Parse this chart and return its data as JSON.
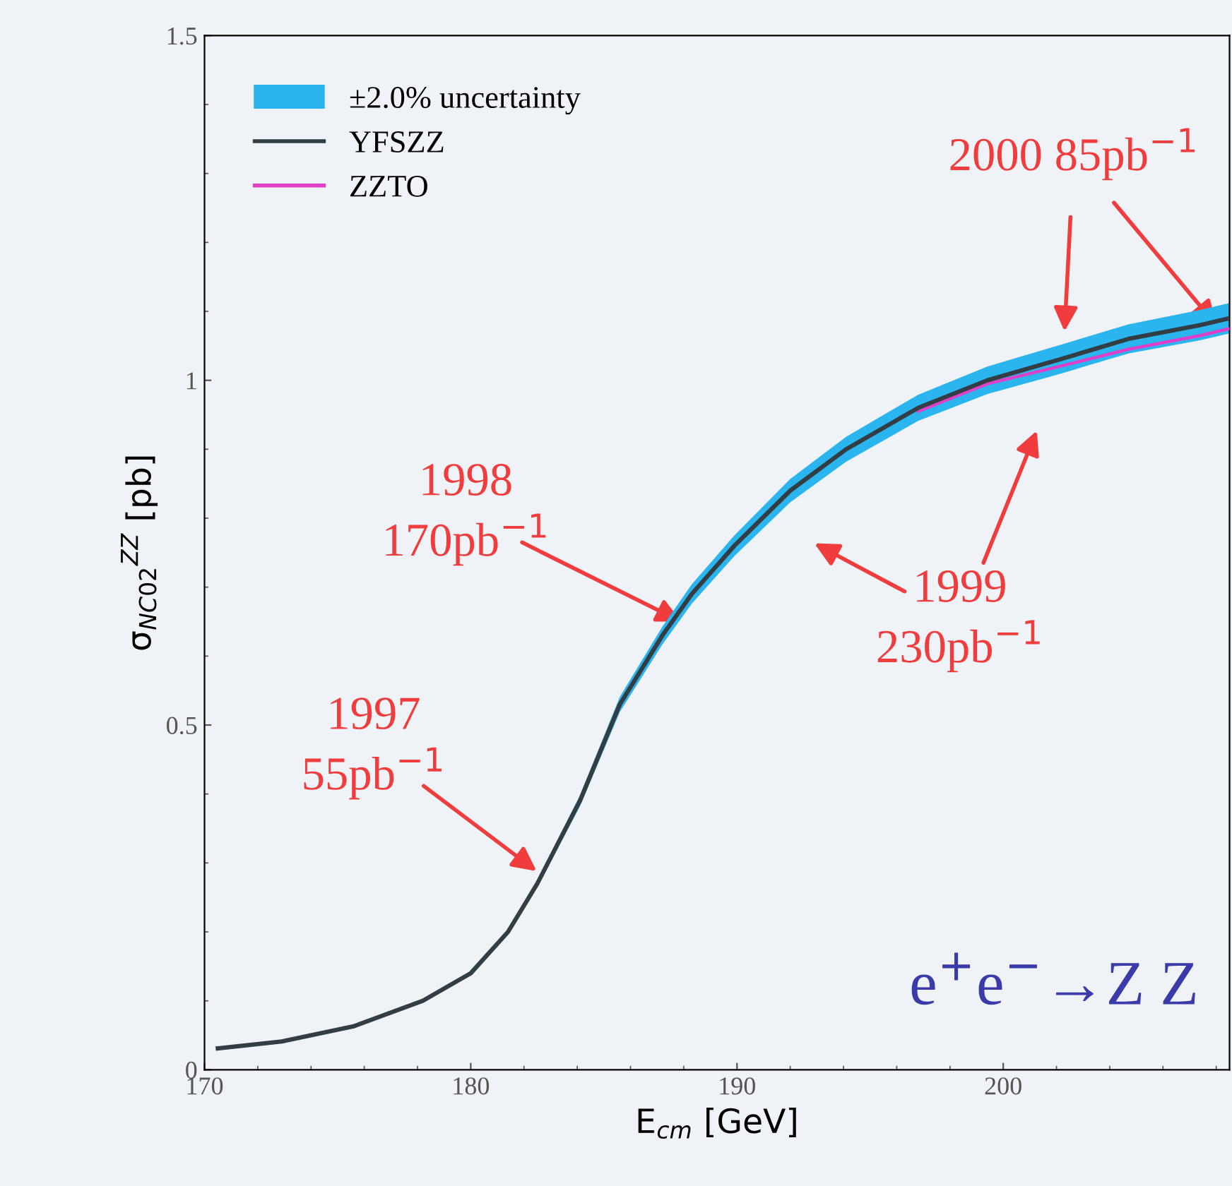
{
  "chart_data": {
    "type": "line",
    "xlabel": "E$_{cm}$ [GeV]",
    "ylabel": "σ$_{NC02}$$^{ZZ}$ [pb]",
    "xlim": [
      170,
      208.5
    ],
    "xticks": [
      170,
      180,
      190,
      200
    ],
    "ylim": [
      0,
      1.5
    ],
    "yticks": [
      0,
      0.5,
      1,
      1.5
    ],
    "grid": false,
    "legend": "top left",
    "x": [
      170.5,
      172.9,
      175.6,
      178.2,
      180,
      181.4,
      182.5,
      184.1,
      185.6,
      187.2,
      188.3,
      189.9,
      192.0,
      194.1,
      196.8,
      199.4,
      202.1,
      204.7,
      207.4,
      208.5
    ],
    "series": [
      {
        "name": "±2.0% uncertainty",
        "type": "line",
        "color": "#2bb5ee",
        "values": [
          null,
          null,
          null,
          null,
          null,
          null,
          null,
          null,
          null,
          null,
          null,
          null,
          null,
          null,
          null,
          null,
          null,
          null,
          null,
          null
        ],
        "lower": [
          0.03,
          0.04,
          0.062,
          0.098,
          0.137,
          0.196,
          0.265,
          0.382,
          0.519,
          0.617,
          0.676,
          0.745,
          0.823,
          0.882,
          0.941,
          0.98,
          1.009,
          1.039,
          1.058,
          1.068
        ],
        "upper": [
          0.032,
          0.042,
          0.064,
          0.102,
          0.143,
          0.204,
          0.275,
          0.398,
          0.541,
          0.643,
          0.704,
          0.775,
          0.857,
          0.918,
          0.979,
          1.02,
          1.051,
          1.081,
          1.102,
          1.112
        ]
      },
      {
        "name": "YFSZZ",
        "color": "#333d44",
        "values": [
          0.031,
          0.041,
          0.063,
          0.1,
          0.14,
          0.2,
          0.27,
          0.39,
          0.53,
          0.63,
          0.69,
          0.76,
          0.84,
          0.9,
          0.96,
          1.0,
          1.03,
          1.06,
          1.08,
          1.09
        ]
      },
      {
        "name": "ZZTO",
        "type": "line",
        "color": "#e040c8",
        "values": [
          null,
          null,
          null,
          null,
          null,
          null,
          null,
          null,
          null,
          null,
          null,
          null,
          null,
          null,
          0.955,
          0.995,
          1.02,
          1.045,
          1.065,
          1.075
        ]
      }
    ],
    "annotations": [
      "1997\n55pb$^{−1}$",
      {
        "text": "1998\n170pb$^{−1}$",
        "x": 187.9,
        "y": 0.65
      },
      "1999\n230pb$^{−1}$",
      {
        "text": "2000 85pb$^{−1}$",
        "x": 208.0,
        "y": 1.08
      },
      "e$^{+}$e$^{−}$→Z Z"
    ]
  }
}
